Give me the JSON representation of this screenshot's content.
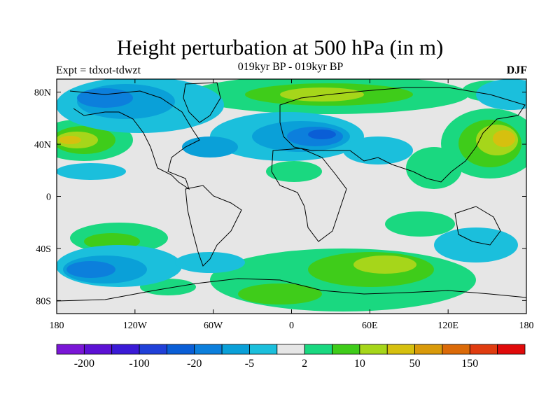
{
  "title": "Height perturbation at 500 hPa (in m)",
  "subtitle": "019kyr BP - 019kyr BP",
  "left_label": "Expt = tdxot-tdwzt",
  "right_label": "DJF",
  "map": {
    "lon_ticks": [
      {
        "lon": -180,
        "label": "180"
      },
      {
        "lon": -120,
        "label": "120W"
      },
      {
        "lon": -60,
        "label": "60W"
      },
      {
        "lon": 0,
        "label": "0"
      },
      {
        "lon": 60,
        "label": "60E"
      },
      {
        "lon": 120,
        "label": "120E"
      },
      {
        "lon": 180,
        "label": "180"
      }
    ],
    "lat_ticks": [
      {
        "lat": 80,
        "label": "80N"
      },
      {
        "lat": 40,
        "label": "40N"
      },
      {
        "lat": 0,
        "label": "0"
      },
      {
        "lat": -40,
        "label": "40S"
      },
      {
        "lat": -80,
        "label": "80S"
      }
    ],
    "lon_range": [
      -180,
      180
    ],
    "lat_range": [
      -90,
      90
    ]
  },
  "colorbar": {
    "colors": [
      "#7a16d6",
      "#5c11d4",
      "#3a1ad6",
      "#2040d8",
      "#0a5ed6",
      "#0c7fdc",
      "#0aa0d8",
      "#1bbfdc",
      "#e6e6e6",
      "#1ad880",
      "#3fcc1a",
      "#a6d61a",
      "#d6c00f",
      "#d99a0a",
      "#db6a08",
      "#e03c10",
      "#e00a0a"
    ],
    "labels": [
      {
        "edge": 1,
        "text": "-200"
      },
      {
        "edge": 3,
        "text": "-100"
      },
      {
        "edge": 5,
        "text": "-20"
      },
      {
        "edge": 7,
        "text": "-5"
      },
      {
        "edge": 9,
        "text": "2"
      },
      {
        "edge": 11,
        "text": "10"
      },
      {
        "edge": 13,
        "text": "50"
      },
      {
        "edge": 15,
        "text": "150"
      }
    ]
  }
}
